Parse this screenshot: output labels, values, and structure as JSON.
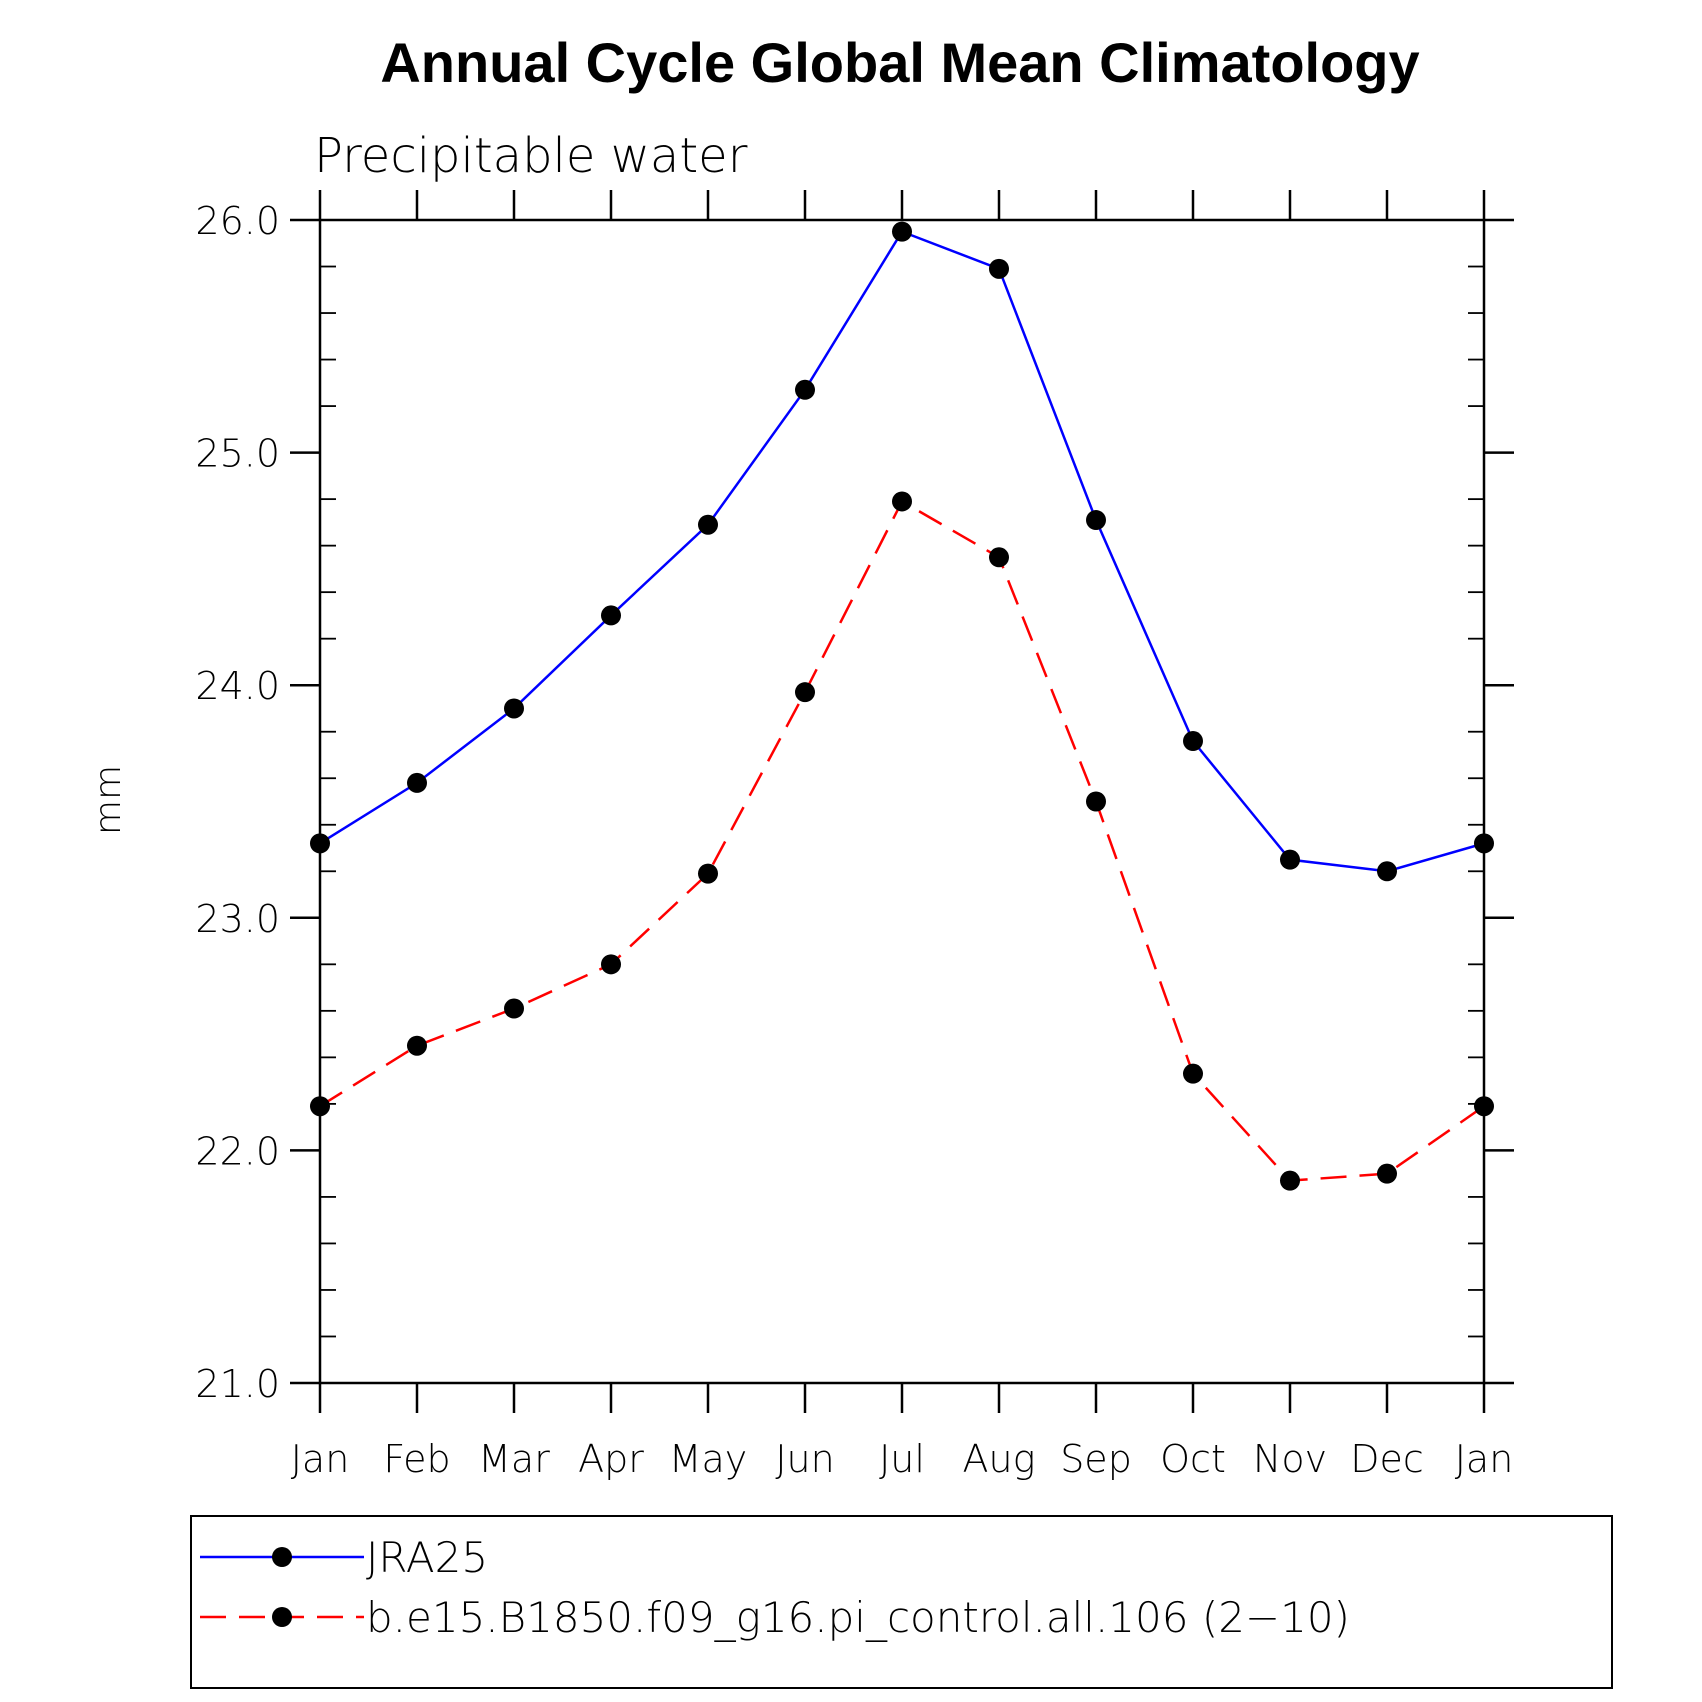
{
  "chart_data": {
    "type": "line",
    "title": "Annual Cycle Global Mean Climatology",
    "subtitle": "Precipitable water",
    "xlabel": "",
    "ylabel": "mm",
    "categories": [
      "Jan",
      "Feb",
      "Mar",
      "Apr",
      "May",
      "Jun",
      "Jul",
      "Aug",
      "Sep",
      "Oct",
      "Nov",
      "Dec",
      "Jan"
    ],
    "ylim": [
      21.0,
      26.0
    ],
    "y_ticks": [
      "21.0",
      "22.0",
      "23.0",
      "24.0",
      "25.0",
      "26.0"
    ],
    "grid": false,
    "legend_placement": "bottom",
    "series": [
      {
        "name": "JRA25",
        "color": "#0000ff",
        "line_style": "solid",
        "marker": "filled-circle",
        "values": [
          23.32,
          23.58,
          23.9,
          24.3,
          24.69,
          25.27,
          25.95,
          25.79,
          24.71,
          23.76,
          23.25,
          23.2,
          23.32
        ]
      },
      {
        "name": "b.e15.B1850.f09_g16.pi_control.all.106 (2−10)",
        "color": "#ff0000",
        "line_style": "dashed",
        "marker": "filled-circle",
        "values": [
          22.19,
          22.45,
          22.61,
          22.8,
          23.19,
          23.97,
          24.79,
          24.55,
          23.5,
          22.33,
          21.87,
          21.9,
          22.19
        ]
      }
    ]
  }
}
